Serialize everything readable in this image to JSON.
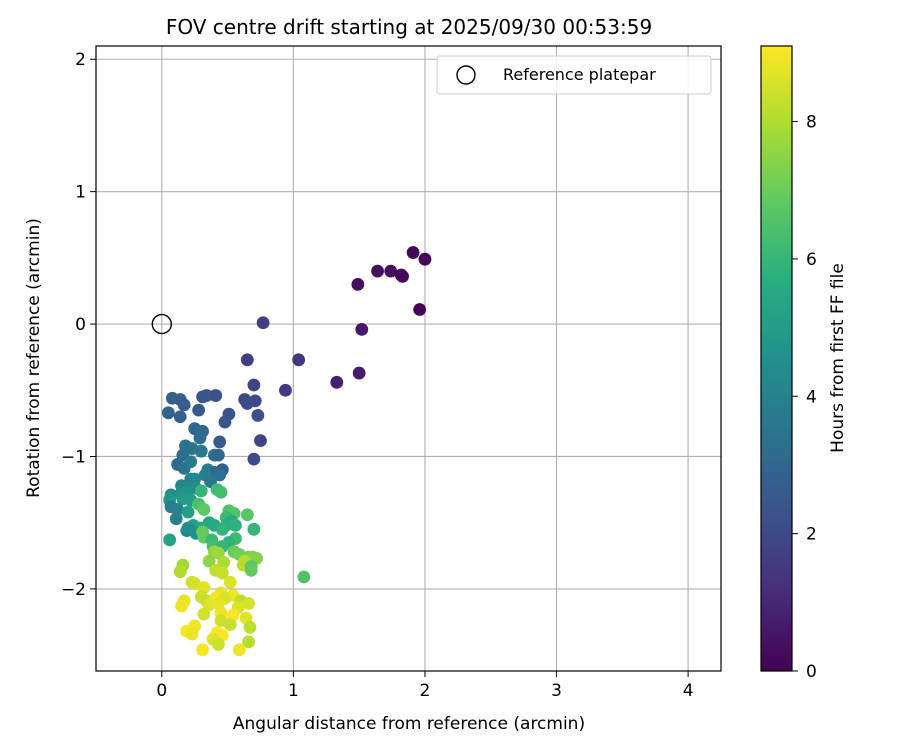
{
  "chart_data": {
    "type": "scatter",
    "title": "FOV centre drift starting at 2025/09/30 00:53:59",
    "xlabel": "Angular distance from reference (arcmin)",
    "ylabel": "Rotation from reference (arcmin)",
    "xlim": [
      -0.5,
      4.25
    ],
    "ylim": [
      -2.62,
      2.1
    ],
    "xticks": [
      0,
      1,
      2,
      3,
      4
    ],
    "xtick_labels": [
      "0",
      "1",
      "2",
      "3",
      "4"
    ],
    "yticks": [
      -2,
      -1,
      0,
      1,
      2
    ],
    "ytick_labels": [
      "−2",
      "−1",
      "0",
      "1",
      "2"
    ],
    "grid": true,
    "legend": {
      "position": "top-right",
      "entries": [
        {
          "label": "Reference platepar",
          "marker": "open-circle"
        }
      ]
    },
    "reference_point": {
      "x": 0,
      "y": 0,
      "label": "Reference platepar"
    },
    "colorbar": {
      "label": "Hours from first FF file",
      "min": 0,
      "max": 9.1,
      "ticks": [
        0,
        2,
        4,
        6,
        8
      ],
      "tick_labels": [
        "0",
        "2",
        "4",
        "6",
        "8"
      ],
      "colormap": "viridis"
    },
    "points": [
      [
        1.91,
        0.54,
        0.15
      ],
      [
        2.0,
        0.49,
        0.05
      ],
      [
        1.64,
        0.4,
        0.35
      ],
      [
        1.74,
        0.4,
        0.3
      ],
      [
        1.82,
        0.37,
        0.25
      ],
      [
        1.83,
        0.36,
        0.2
      ],
      [
        1.49,
        0.3,
        0.4
      ],
      [
        1.96,
        0.11,
        0.1
      ],
      [
        1.52,
        -0.04,
        0.6
      ],
      [
        1.5,
        -0.37,
        0.7
      ],
      [
        1.33,
        -0.44,
        0.8
      ],
      [
        0.77,
        0.01,
        1.6
      ],
      [
        0.65,
        -0.27,
        1.7
      ],
      [
        1.04,
        -0.27,
        1.4
      ],
      [
        0.94,
        -0.5,
        1.5
      ],
      [
        0.7,
        -0.46,
        1.8
      ],
      [
        0.63,
        -0.57,
        1.9
      ],
      [
        0.71,
        -0.58,
        2.0
      ],
      [
        0.65,
        -0.6,
        2.1
      ],
      [
        0.73,
        -0.69,
        2.2
      ],
      [
        0.75,
        -0.88,
        1.9
      ],
      [
        0.7,
        -1.02,
        2.0
      ],
      [
        0.31,
        -0.55,
        2.3
      ],
      [
        0.34,
        -0.54,
        2.4
      ],
      [
        0.41,
        -0.54,
        2.2
      ],
      [
        0.08,
        -0.56,
        2.8
      ],
      [
        0.14,
        -0.57,
        2.7
      ],
      [
        0.17,
        -0.61,
        2.6
      ],
      [
        0.28,
        -0.65,
        2.5
      ],
      [
        0.51,
        -0.68,
        2.3
      ],
      [
        0.48,
        -0.74,
        2.4
      ],
      [
        0.05,
        -0.67,
        2.9
      ],
      [
        0.14,
        -0.7,
        2.8
      ],
      [
        0.25,
        -0.79,
        3.0
      ],
      [
        0.31,
        -0.81,
        3.1
      ],
      [
        0.29,
        -0.86,
        3.2
      ],
      [
        0.44,
        -0.89,
        2.6
      ],
      [
        0.18,
        -0.92,
        3.4
      ],
      [
        0.23,
        -0.94,
        3.5
      ],
      [
        0.3,
        -0.96,
        3.6
      ],
      [
        0.16,
        -0.99,
        3.3
      ],
      [
        0.4,
        -0.99,
        3.4
      ],
      [
        0.43,
        -0.99,
        3.0
      ],
      [
        0.12,
        -1.06,
        3.1
      ],
      [
        0.17,
        -1.09,
        3.5
      ],
      [
        0.22,
        -1.04,
        3.7
      ],
      [
        0.35,
        -1.1,
        3.8
      ],
      [
        0.4,
        -1.12,
        2.9
      ],
      [
        0.46,
        -1.1,
        2.7
      ],
      [
        0.44,
        -1.14,
        3.3
      ],
      [
        0.22,
        -1.17,
        4.0
      ],
      [
        0.25,
        -1.17,
        4.2
      ],
      [
        0.33,
        -1.14,
        3.9
      ],
      [
        0.37,
        -1.19,
        3.6
      ],
      [
        0.15,
        -1.22,
        4.1
      ],
      [
        0.2,
        -1.24,
        4.3
      ],
      [
        0.26,
        -1.24,
        4.4
      ],
      [
        0.3,
        -1.26,
        6.0
      ],
      [
        0.07,
        -1.29,
        4.5
      ],
      [
        0.15,
        -1.27,
        4.6
      ],
      [
        0.19,
        -1.28,
        4.7
      ],
      [
        0.42,
        -1.25,
        6.2
      ],
      [
        0.45,
        -1.27,
        6.3
      ],
      [
        0.06,
        -1.33,
        4.8
      ],
      [
        0.16,
        -1.32,
        4.9
      ],
      [
        0.22,
        -1.33,
        5.0
      ],
      [
        0.07,
        -1.38,
        3.8
      ],
      [
        0.12,
        -1.4,
        4.0
      ],
      [
        0.28,
        -1.36,
        6.4
      ],
      [
        0.51,
        -1.41,
        6.5
      ],
      [
        0.55,
        -1.43,
        6.6
      ],
      [
        0.65,
        -1.44,
        6.7
      ],
      [
        0.2,
        -1.42,
        5.1
      ],
      [
        0.32,
        -1.4,
        6.8
      ],
      [
        0.49,
        -1.46,
        6.1
      ],
      [
        0.11,
        -1.47,
        3.9
      ],
      [
        0.24,
        -1.52,
        5.2
      ],
      [
        0.3,
        -1.54,
        5.3
      ],
      [
        0.36,
        -1.5,
        5.4
      ],
      [
        0.4,
        -1.52,
        5.5
      ],
      [
        0.53,
        -1.49,
        5.6
      ],
      [
        0.49,
        -1.52,
        5.7
      ],
      [
        0.56,
        -1.52,
        5.8
      ],
      [
        0.19,
        -1.56,
        4.2
      ],
      [
        0.2,
        -1.54,
        4.4
      ],
      [
        0.26,
        -1.58,
        4.6
      ],
      [
        0.31,
        -1.57,
        6.9
      ],
      [
        0.46,
        -1.55,
        5.9
      ],
      [
        0.7,
        -1.55,
        6.0
      ],
      [
        0.32,
        -1.61,
        6.9
      ],
      [
        0.06,
        -1.63,
        5.2
      ],
      [
        0.38,
        -1.63,
        6.1
      ],
      [
        0.56,
        -1.62,
        6.2
      ],
      [
        0.39,
        -1.68,
        6.3
      ],
      [
        0.51,
        -1.65,
        5.8
      ],
      [
        0.46,
        -1.68,
        6.0
      ],
      [
        0.55,
        -1.72,
        7.0
      ],
      [
        0.59,
        -1.74,
        7.1
      ],
      [
        0.66,
        -1.76,
        7.2
      ],
      [
        0.69,
        -1.76,
        7.3
      ],
      [
        0.72,
        -1.77,
        7.4
      ],
      [
        0.4,
        -1.72,
        7.6
      ],
      [
        0.43,
        -1.73,
        7.7
      ],
      [
        0.36,
        -1.79,
        7.5
      ],
      [
        0.16,
        -1.82,
        7.8
      ],
      [
        0.47,
        -1.8,
        7.9
      ],
      [
        0.63,
        -1.79,
        8.0
      ],
      [
        0.62,
        -1.82,
        8.1
      ],
      [
        0.68,
        -1.83,
        6.8
      ],
      [
        0.68,
        -1.86,
        6.9
      ],
      [
        0.14,
        -1.87,
        8.0
      ],
      [
        0.41,
        -1.86,
        8.2
      ],
      [
        0.46,
        -1.88,
        8.3
      ],
      [
        1.08,
        -1.91,
        6.5
      ],
      [
        0.23,
        -1.95,
        8.4
      ],
      [
        0.25,
        -1.96,
        8.5
      ],
      [
        0.52,
        -1.95,
        8.6
      ],
      [
        0.32,
        -1.99,
        8.7
      ],
      [
        0.45,
        -2.03,
        8.8
      ],
      [
        0.54,
        -2.05,
        8.9
      ],
      [
        0.3,
        -2.06,
        8.4
      ],
      [
        0.34,
        -2.09,
        8.3
      ],
      [
        0.41,
        -2.07,
        9.0
      ],
      [
        0.48,
        -2.07,
        8.6
      ],
      [
        0.17,
        -2.09,
        8.8
      ],
      [
        0.6,
        -2.09,
        8.2
      ],
      [
        0.66,
        -2.11,
        8.5
      ],
      [
        0.15,
        -2.13,
        8.9
      ],
      [
        0.36,
        -2.12,
        8.7
      ],
      [
        0.43,
        -2.11,
        8.8
      ],
      [
        0.58,
        -2.14,
        8.6
      ],
      [
        0.32,
        -2.19,
        8.5
      ],
      [
        0.45,
        -2.18,
        8.9
      ],
      [
        0.54,
        -2.2,
        9.0
      ],
      [
        0.64,
        -2.22,
        8.7
      ],
      [
        0.45,
        -2.24,
        8.4
      ],
      [
        0.52,
        -2.27,
        8.3
      ],
      [
        0.67,
        -2.29,
        8.2
      ],
      [
        0.25,
        -2.28,
        8.9
      ],
      [
        0.19,
        -2.32,
        9.0
      ],
      [
        0.23,
        -2.34,
        8.8
      ],
      [
        0.42,
        -2.33,
        9.1
      ],
      [
        0.46,
        -2.35,
        9.0
      ],
      [
        0.39,
        -2.38,
        8.6
      ],
      [
        0.66,
        -2.4,
        8.1
      ],
      [
        0.43,
        -2.42,
        8.4
      ],
      [
        0.31,
        -2.46,
        9.0
      ],
      [
        0.59,
        -2.46,
        8.9
      ]
    ]
  }
}
